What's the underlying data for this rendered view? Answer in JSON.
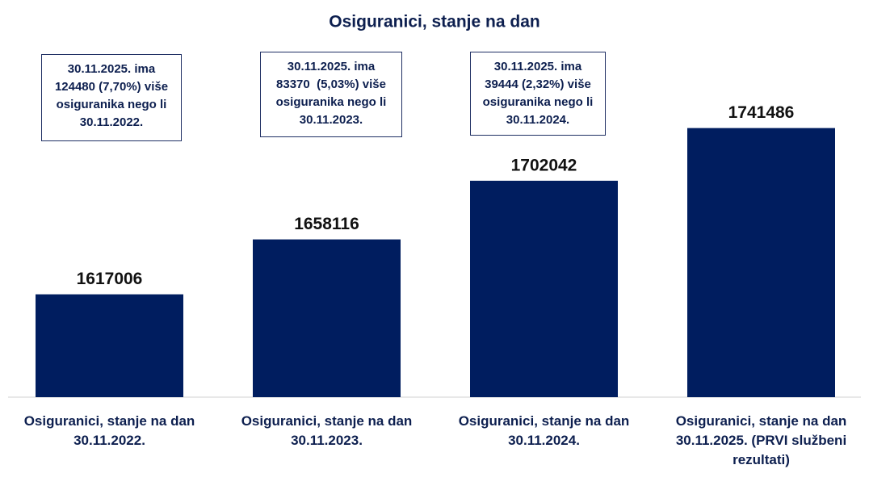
{
  "chart_data": {
    "type": "bar",
    "title": "Osiguranici, stanje na dan",
    "categories": [
      "Osiguranici, stanje na dan 30.11.2022.",
      "Osiguranici, stanje na dan 30.11.2023.",
      "Osiguranici, stanje na dan 30.11.2024.",
      "Osiguranici, stanje na dan 30.11.2025. (PRVI službeni rezultati)"
    ],
    "values": [
      1617006,
      1658116,
      1702042,
      1741486
    ],
    "color": "#001d5f",
    "ylim": [
      1540000,
      1760000
    ],
    "annotations": [
      [
        "30.11.2025. ima",
        "124480 (7,70%) više",
        "osiguranika nego li",
        "30.11.2022."
      ],
      [
        "30.11.2025. ima",
        "83370  (5,03%) više",
        "osiguranika nego li",
        "30.11.2023."
      ],
      [
        "30.11.2025. ima",
        "39444 (2,32%) više",
        "osiguranika nego li",
        "30.11.2024."
      ]
    ]
  }
}
